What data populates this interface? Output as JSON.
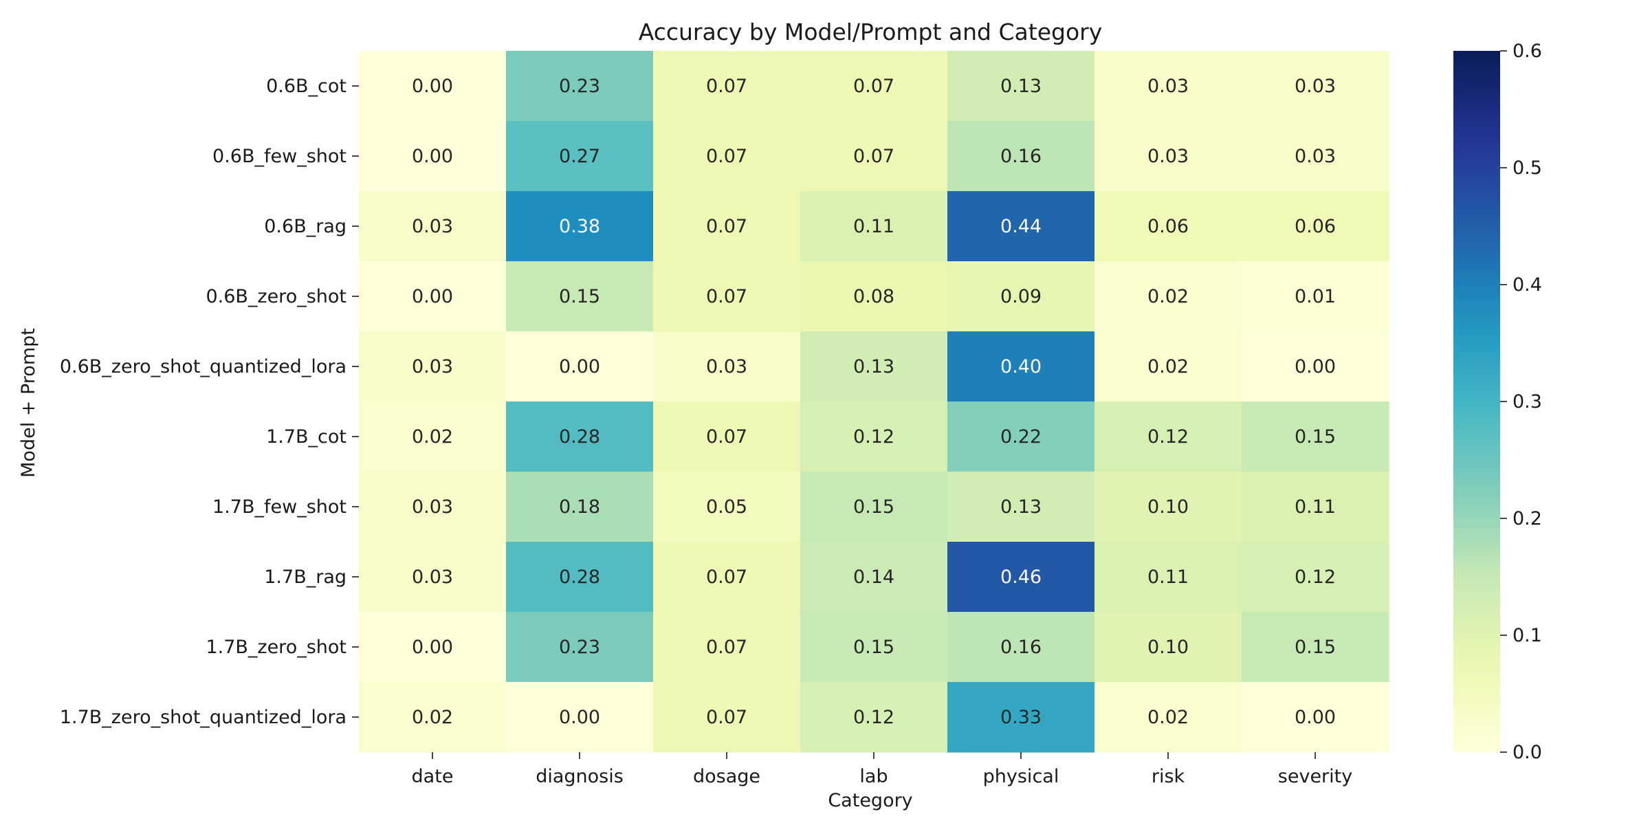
{
  "chart_data": {
    "type": "heatmap",
    "title": "Accuracy by Model/Prompt and Category",
    "xlabel": "Category",
    "ylabel": "Model + Prompt",
    "x_categories": [
      "date",
      "diagnosis",
      "dosage",
      "lab",
      "physical",
      "risk",
      "severity"
    ],
    "y_categories": [
      "0.6B_cot",
      "0.6B_few_shot",
      "0.6B_rag",
      "0.6B_zero_shot",
      "0.6B_zero_shot_quantized_lora",
      "1.7B_cot",
      "1.7B_few_shot",
      "1.7B_rag",
      "1.7B_zero_shot",
      "1.7B_zero_shot_quantized_lora"
    ],
    "values": [
      [
        0.0,
        0.23,
        0.07,
        0.07,
        0.13,
        0.03,
        0.03
      ],
      [
        0.0,
        0.27,
        0.07,
        0.07,
        0.16,
        0.03,
        0.03
      ],
      [
        0.03,
        0.38,
        0.07,
        0.11,
        0.44,
        0.06,
        0.06
      ],
      [
        0.0,
        0.15,
        0.07,
        0.08,
        0.09,
        0.02,
        0.01
      ],
      [
        0.03,
        0.0,
        0.03,
        0.13,
        0.4,
        0.02,
        0.0
      ],
      [
        0.02,
        0.28,
        0.07,
        0.12,
        0.22,
        0.12,
        0.15
      ],
      [
        0.03,
        0.18,
        0.05,
        0.15,
        0.13,
        0.1,
        0.11
      ],
      [
        0.03,
        0.28,
        0.07,
        0.14,
        0.46,
        0.11,
        0.12
      ],
      [
        0.0,
        0.23,
        0.07,
        0.15,
        0.16,
        0.1,
        0.15
      ],
      [
        0.02,
        0.0,
        0.07,
        0.12,
        0.33,
        0.02,
        0.0
      ]
    ],
    "value_format": "0.00",
    "colormap": "YlGnBu",
    "vmin": 0.0,
    "vmax": 0.6,
    "colorbar_ticks": [
      "0.0",
      "0.1",
      "0.2",
      "0.3",
      "0.4",
      "0.5",
      "0.6"
    ],
    "grid": false
  }
}
